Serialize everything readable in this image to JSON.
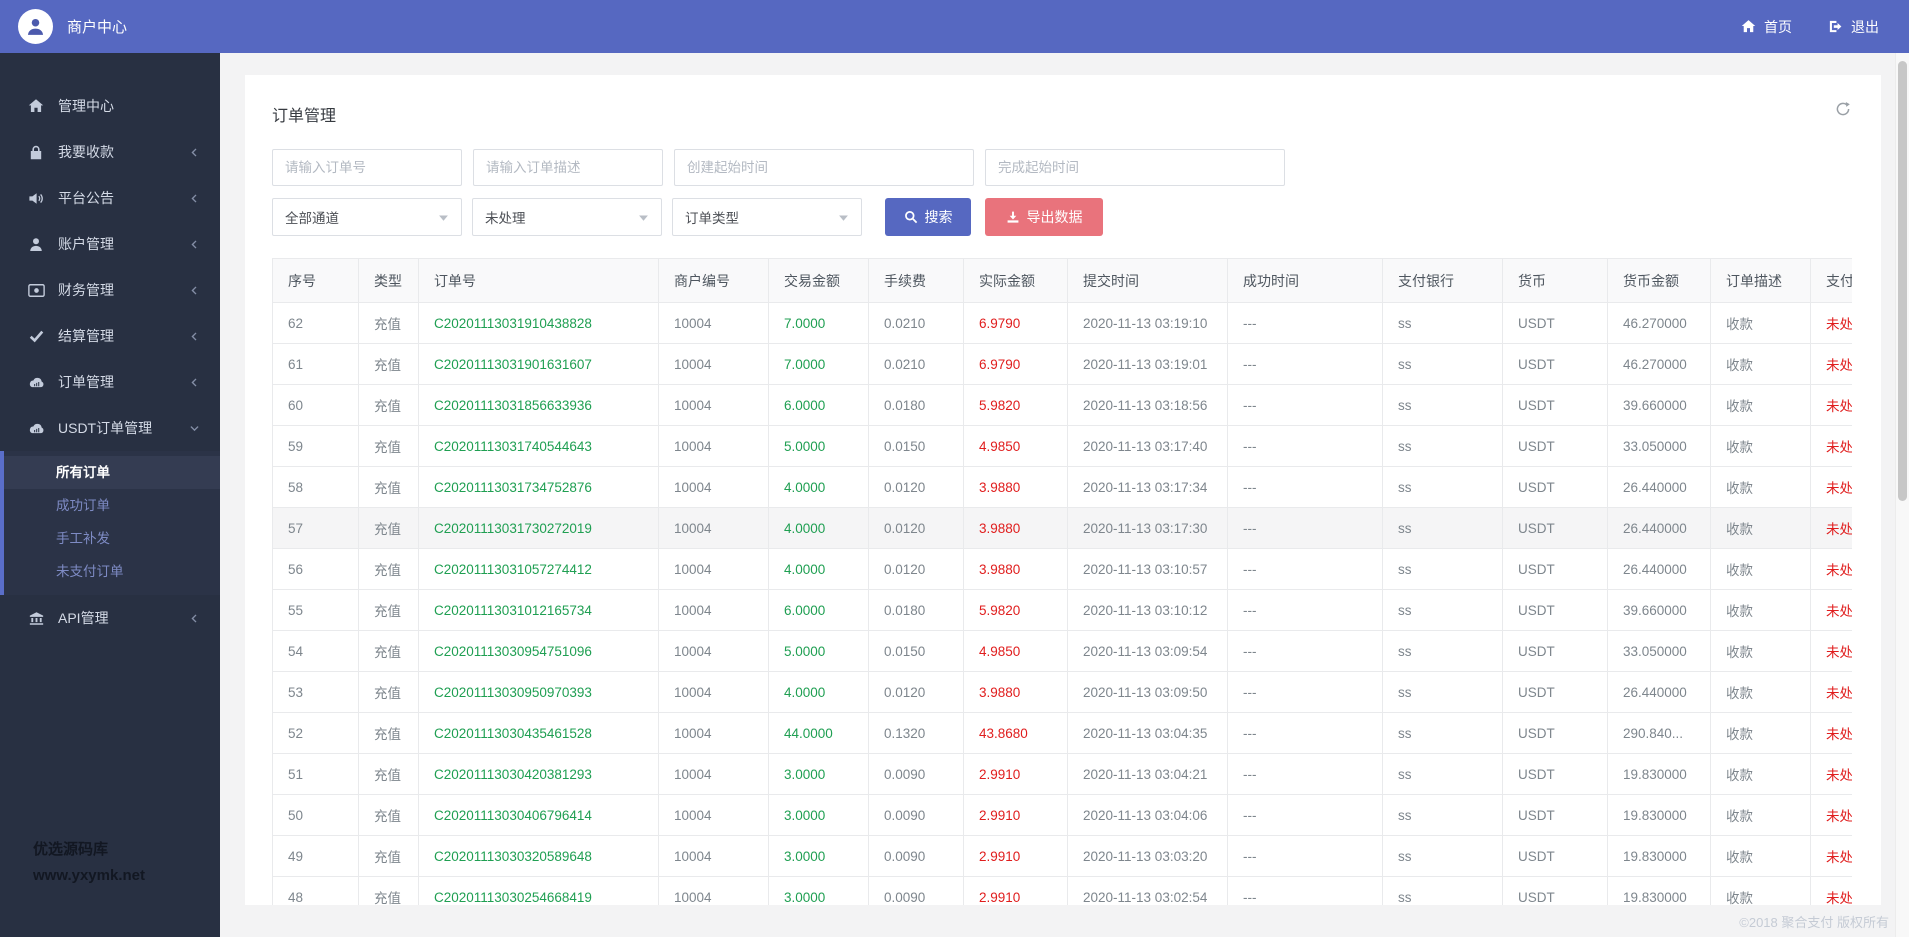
{
  "header": {
    "brand": "商户中心",
    "home_label": "首页",
    "logout_label": "退出"
  },
  "sidebar": {
    "items": [
      {
        "id": "dashboard",
        "label": "管理中心",
        "icon": "home-icon",
        "chevron": ""
      },
      {
        "id": "collect",
        "label": "我要收款",
        "icon": "lock-icon",
        "chevron": "left"
      },
      {
        "id": "announce",
        "label": "平台公告",
        "icon": "bullhorn-icon",
        "chevron": "left"
      },
      {
        "id": "account",
        "label": "账户管理",
        "icon": "user-icon",
        "chevron": "left"
      },
      {
        "id": "finance",
        "label": "财务管理",
        "icon": "money-icon",
        "chevron": "left"
      },
      {
        "id": "settlement",
        "label": "结算管理",
        "icon": "check-icon",
        "chevron": "left"
      },
      {
        "id": "orders",
        "label": "订单管理",
        "icon": "cloud-icon",
        "chevron": "left"
      },
      {
        "id": "usdt-orders",
        "label": "USDT订单管理",
        "icon": "cloud-icon",
        "chevron": "down",
        "children": [
          {
            "label": "所有订单",
            "active": true
          },
          {
            "label": "成功订单",
            "active": false
          },
          {
            "label": "手工补发",
            "active": false
          },
          {
            "label": "未支付订单",
            "active": false
          }
        ]
      },
      {
        "id": "api",
        "label": "API管理",
        "icon": "bank-icon",
        "chevron": "left"
      }
    ],
    "watermark_line1": "优选源码库",
    "watermark_line2": "www.yxymk.net"
  },
  "page": {
    "title": "订单管理",
    "filters": {
      "order_no_placeholder": "请输入订单号",
      "order_desc_placeholder": "请输入订单描述",
      "create_time_placeholder": "创建起始时间",
      "finish_time_placeholder": "完成起始时间",
      "channel_value": "全部通道",
      "status_value": "未处理",
      "type_value": "订单类型",
      "search_label": "搜索",
      "export_label": "导出数据"
    },
    "table": {
      "headers": [
        "序号",
        "类型",
        "订单号",
        "商户编号",
        "交易金额",
        "手续费",
        "实际金额",
        "提交时间",
        "成功时间",
        "支付银行",
        "货币",
        "货币金额",
        "订单描述",
        "支付状态"
      ],
      "highlighted_row_index": 5,
      "rows": [
        [
          "62",
          "充值",
          "C20201113031910438828",
          "10004",
          "7.0000",
          "0.0210",
          "6.9790",
          "2020-11-13 03:19:10",
          "---",
          "ss",
          "USDT",
          "46.270000",
          "收款",
          "未处理"
        ],
        [
          "61",
          "充值",
          "C20201113031901631607",
          "10004",
          "7.0000",
          "0.0210",
          "6.9790",
          "2020-11-13 03:19:01",
          "---",
          "ss",
          "USDT",
          "46.270000",
          "收款",
          "未处理"
        ],
        [
          "60",
          "充值",
          "C20201113031856633936",
          "10004",
          "6.0000",
          "0.0180",
          "5.9820",
          "2020-11-13 03:18:56",
          "---",
          "ss",
          "USDT",
          "39.660000",
          "收款",
          "未处理"
        ],
        [
          "59",
          "充值",
          "C20201113031740544643",
          "10004",
          "5.0000",
          "0.0150",
          "4.9850",
          "2020-11-13 03:17:40",
          "---",
          "ss",
          "USDT",
          "33.050000",
          "收款",
          "未处理"
        ],
        [
          "58",
          "充值",
          "C20201113031734752876",
          "10004",
          "4.0000",
          "0.0120",
          "3.9880",
          "2020-11-13 03:17:34",
          "---",
          "ss",
          "USDT",
          "26.440000",
          "收款",
          "未处理"
        ],
        [
          "57",
          "充值",
          "C20201113031730272019",
          "10004",
          "4.0000",
          "0.0120",
          "3.9880",
          "2020-11-13 03:17:30",
          "---",
          "ss",
          "USDT",
          "26.440000",
          "收款",
          "未处理"
        ],
        [
          "56",
          "充值",
          "C20201113031057274412",
          "10004",
          "4.0000",
          "0.0120",
          "3.9880",
          "2020-11-13 03:10:57",
          "---",
          "ss",
          "USDT",
          "26.440000",
          "收款",
          "未处理"
        ],
        [
          "55",
          "充值",
          "C20201113031012165734",
          "10004",
          "6.0000",
          "0.0180",
          "5.9820",
          "2020-11-13 03:10:12",
          "---",
          "ss",
          "USDT",
          "39.660000",
          "收款",
          "未处理"
        ],
        [
          "54",
          "充值",
          "C20201113030954751096",
          "10004",
          "5.0000",
          "0.0150",
          "4.9850",
          "2020-11-13 03:09:54",
          "---",
          "ss",
          "USDT",
          "33.050000",
          "收款",
          "未处理"
        ],
        [
          "53",
          "充值",
          "C20201113030950970393",
          "10004",
          "4.0000",
          "0.0120",
          "3.9880",
          "2020-11-13 03:09:50",
          "---",
          "ss",
          "USDT",
          "26.440000",
          "收款",
          "未处理"
        ],
        [
          "52",
          "充值",
          "C20201113030435461528",
          "10004",
          "44.0000",
          "0.1320",
          "43.8680",
          "2020-11-13 03:04:35",
          "---",
          "ss",
          "USDT",
          "290.840...",
          "收款",
          "未处理"
        ],
        [
          "51",
          "充值",
          "C20201113030420381293",
          "10004",
          "3.0000",
          "0.0090",
          "2.9910",
          "2020-11-13 03:04:21",
          "---",
          "ss",
          "USDT",
          "19.830000",
          "收款",
          "未处理"
        ],
        [
          "50",
          "充值",
          "C20201113030406796414",
          "10004",
          "3.0000",
          "0.0090",
          "2.9910",
          "2020-11-13 03:04:06",
          "---",
          "ss",
          "USDT",
          "19.830000",
          "收款",
          "未处理"
        ],
        [
          "49",
          "充值",
          "C20201113030320589648",
          "10004",
          "3.0000",
          "0.0090",
          "2.9910",
          "2020-11-13 03:03:20",
          "---",
          "ss",
          "USDT",
          "19.830000",
          "收款",
          "未处理"
        ],
        [
          "48",
          "充值",
          "C20201113030254668419",
          "10004",
          "3.0000",
          "0.0090",
          "2.9910",
          "2020-11-13 03:02:54",
          "---",
          "ss",
          "USDT",
          "19.830000",
          "收款",
          "未处理"
        ]
      ]
    },
    "footer": "©2018 聚合支付 版权所有"
  },
  "colors": {
    "accent_blue": "#5668c1",
    "accent_pink": "#e9737c",
    "sidebar_bg": "#283042",
    "green_text": "#1f9f52",
    "red_text": "#e01d1d"
  }
}
